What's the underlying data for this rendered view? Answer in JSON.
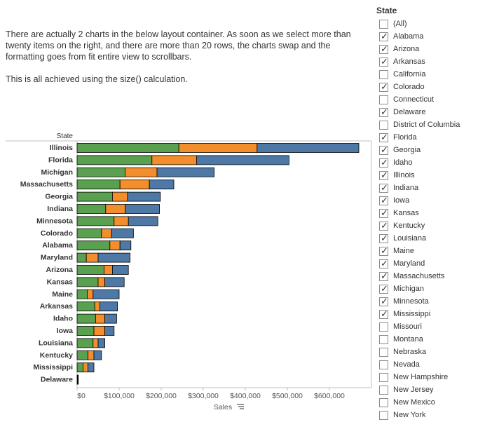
{
  "description": {
    "paragraph1": "There are actually 2 charts in the below layout container. As soon as we select more than twenty items on the right, and there are more than 20 rows, the charts swap and the formatting goes from fit entire view to scrollbars.",
    "paragraph2": "This is all achieved using the size() calculation."
  },
  "filter": {
    "title": "State",
    "items": [
      {
        "label": "(All)",
        "checked": false
      },
      {
        "label": "Alabama",
        "checked": true
      },
      {
        "label": "Arizona",
        "checked": true
      },
      {
        "label": "Arkansas",
        "checked": true
      },
      {
        "label": "California",
        "checked": false
      },
      {
        "label": "Colorado",
        "checked": true
      },
      {
        "label": "Connecticut",
        "checked": false
      },
      {
        "label": "Delaware",
        "checked": true
      },
      {
        "label": "District of Columbia",
        "checked": false
      },
      {
        "label": "Florida",
        "checked": true
      },
      {
        "label": "Georgia",
        "checked": true
      },
      {
        "label": "Idaho",
        "checked": true
      },
      {
        "label": "Illinois",
        "checked": true
      },
      {
        "label": "Indiana",
        "checked": true
      },
      {
        "label": "Iowa",
        "checked": true
      },
      {
        "label": "Kansas",
        "checked": true
      },
      {
        "label": "Kentucky",
        "checked": true
      },
      {
        "label": "Louisiana",
        "checked": true
      },
      {
        "label": "Maine",
        "checked": true
      },
      {
        "label": "Maryland",
        "checked": true
      },
      {
        "label": "Massachusetts",
        "checked": true
      },
      {
        "label": "Michigan",
        "checked": true
      },
      {
        "label": "Minnesota",
        "checked": true
      },
      {
        "label": "Mississippi",
        "checked": true
      },
      {
        "label": "Missouri",
        "checked": false
      },
      {
        "label": "Montana",
        "checked": false
      },
      {
        "label": "Nebraska",
        "checked": false
      },
      {
        "label": "Nevada",
        "checked": false
      },
      {
        "label": "New Hampshire",
        "checked": false
      },
      {
        "label": "New Jersey",
        "checked": false
      },
      {
        "label": "New Mexico",
        "checked": false
      },
      {
        "label": "New York",
        "checked": false
      }
    ]
  },
  "chart_data": {
    "type": "bar",
    "orientation": "horizontal",
    "stacked": true,
    "row_header": "State",
    "xlabel": "Sales",
    "xlim": [
      0,
      700000
    ],
    "x_ticks": [
      0,
      100000,
      200000,
      300000,
      400000,
      500000,
      600000
    ],
    "x_tick_labels": [
      "$0",
      "$100,000",
      "$200,000",
      "$300,000",
      "$400,000",
      "$500,000",
      "$600,000"
    ],
    "categories": [
      "Illinois",
      "Florida",
      "Michigan",
      "Massachusetts",
      "Georgia",
      "Indiana",
      "Minnesota",
      "Colorado",
      "Alabama",
      "Maryland",
      "Arizona",
      "Kansas",
      "Maine",
      "Arkansas",
      "Idaho",
      "Iowa",
      "Louisiana",
      "Kentucky",
      "Mississippi",
      "Delaware"
    ],
    "series": [
      {
        "color": "#59a14f",
        "values": [
          242000,
          178000,
          114000,
          102000,
          84000,
          68000,
          88000,
          58000,
          78000,
          22000,
          64000,
          50000,
          24000,
          42000,
          44000,
          40000,
          38000,
          26000,
          14000,
          1000
        ]
      },
      {
        "color": "#f28e2b",
        "values": [
          186000,
          106000,
          76000,
          70000,
          36000,
          46000,
          34000,
          24000,
          24000,
          28000,
          20000,
          16000,
          14000,
          12000,
          22000,
          26000,
          12000,
          14000,
          12000,
          500
        ]
      },
      {
        "color": "#4e79a7",
        "values": [
          242000,
          220000,
          136000,
          58000,
          78000,
          82000,
          70000,
          52000,
          26000,
          76000,
          38000,
          46000,
          62000,
          42000,
          28000,
          22000,
          16000,
          18000,
          14000,
          500
        ]
      }
    ]
  },
  "colors": {
    "bar_outline": "#000000",
    "axis": "#bfbfbf"
  }
}
